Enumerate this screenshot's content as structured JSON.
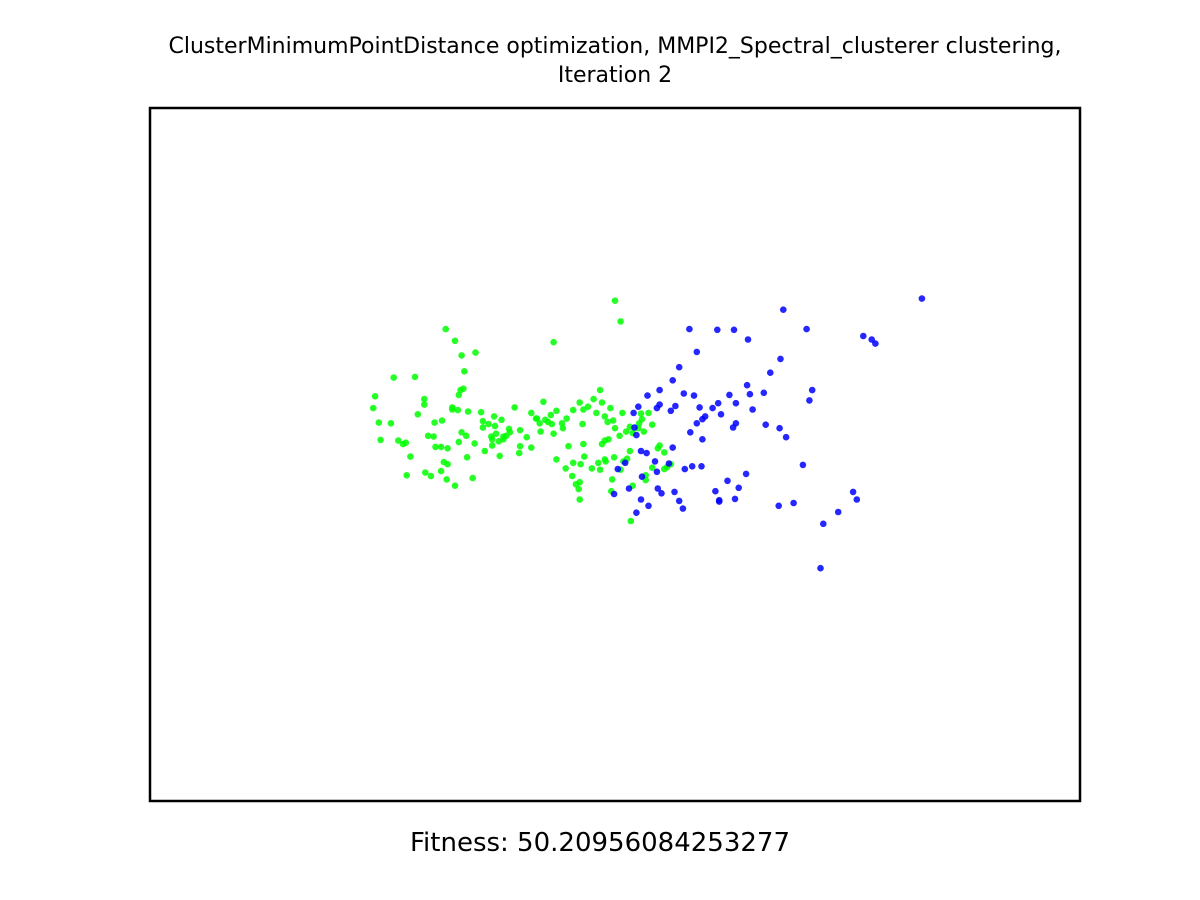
{
  "chart_data": {
    "type": "scatter",
    "title_lines": [
      "ClusterMinimumPointDistance optimization, MMPI2_Spectral_clusterer clustering,",
      "Iteration 2"
    ],
    "xlabel": "Fitness: 50.20956084253277",
    "ylabel": "",
    "xlim": [
      0,
      1000
    ],
    "ylim": [
      0,
      1000
    ],
    "axis_ticks_visible": false,
    "grid": false,
    "legend": "none",
    "series": [
      {
        "color": "#00ff00",
        "points": [
          [
            500,
            722
          ],
          [
            506,
            692
          ],
          [
            434,
            662
          ],
          [
            376,
            498
          ],
          [
            342,
            562
          ],
          [
            349,
            516
          ],
          [
            358,
            548
          ],
          [
            364,
            544
          ],
          [
            371,
            541
          ],
          [
            375,
            519
          ],
          [
            378,
            550
          ],
          [
            380,
            522
          ],
          [
            392,
            568
          ],
          [
            398,
            535
          ],
          [
            397,
            502
          ],
          [
            405,
            525
          ],
          [
            410,
            560
          ],
          [
            416,
            552
          ],
          [
            420,
            533
          ],
          [
            425,
            550
          ],
          [
            431,
            557
          ],
          [
            432,
            544
          ],
          [
            434,
            530
          ],
          [
            437,
            563
          ],
          [
            443,
            545
          ],
          [
            448,
            552
          ],
          [
            455,
            564
          ],
          [
            462,
            575
          ],
          [
            466,
            565
          ],
          [
            471,
            569
          ],
          [
            477,
            580
          ],
          [
            480,
            560
          ],
          [
            484,
            593
          ],
          [
            486,
            575
          ],
          [
            489,
            555
          ],
          [
            492,
            547
          ],
          [
            495,
            567
          ],
          [
            489,
            520
          ],
          [
            498,
            549
          ],
          [
            500,
            538
          ],
          [
            505,
            527
          ],
          [
            508,
            560
          ],
          [
            512,
            533
          ],
          [
            516,
            540
          ],
          [
            519,
            531
          ],
          [
            526,
            545
          ],
          [
            529,
            551
          ],
          [
            531,
            533
          ],
          [
            536,
            560
          ],
          [
            540,
            543
          ],
          [
            548,
            513
          ],
          [
            553,
            503
          ],
          [
            461,
            450
          ],
          [
            462,
            460
          ],
          [
            463,
            486
          ],
          [
            465,
            544
          ],
          [
            467,
            497
          ],
          [
            475,
            480
          ],
          [
            482,
            488
          ],
          [
            484,
            478
          ],
          [
            486,
            515
          ],
          [
            490,
            490
          ],
          [
            493,
            522
          ],
          [
            496,
            447
          ],
          [
            497,
            464
          ],
          [
            499,
            496
          ],
          [
            506,
            478
          ],
          [
            509,
            490
          ],
          [
            513,
            494
          ],
          [
            516,
            505
          ],
          [
            525,
            538
          ],
          [
            528,
            559
          ],
          [
            533,
            470
          ],
          [
            540,
            481
          ],
          [
            546,
            509
          ],
          [
            553,
            479
          ],
          [
            556,
            482
          ],
          [
            560,
            486
          ],
          [
            533,
            463
          ],
          [
            519,
            455
          ],
          [
            517,
            404
          ],
          [
            489,
            493
          ],
          [
            462,
            435
          ],
          [
            458,
            457
          ],
          [
            454,
            469
          ],
          [
            447,
            480
          ],
          [
            437,
            493
          ],
          [
            466,
            515
          ],
          [
            455,
            488
          ],
          [
            450,
            512
          ],
          [
            444,
            538
          ],
          [
            428,
            547
          ],
          [
            423,
            576
          ],
          [
            419,
            545
          ],
          [
            415,
            552
          ],
          [
            410,
            510
          ],
          [
            398,
            512
          ],
          [
            387,
            532
          ],
          [
            386,
            537
          ],
          [
            383,
            527
          ],
          [
            380,
            526
          ],
          [
            372,
            530
          ],
          [
            370,
            555
          ],
          [
            368,
            513
          ],
          [
            368,
            522
          ],
          [
            367,
            526
          ],
          [
            360,
            505
          ],
          [
            358,
            539
          ],
          [
            356,
            561
          ],
          [
            347,
            466
          ],
          [
            341,
            496
          ],
          [
            340,
            527
          ],
          [
            335,
            532
          ],
          [
            332,
            518
          ],
          [
            328,
            455
          ],
          [
            320,
            486
          ],
          [
            319,
            464
          ],
          [
            313,
            476
          ],
          [
            313,
            511
          ],
          [
            320,
            509
          ],
          [
            316,
            489
          ],
          [
            314,
            549
          ],
          [
            307,
            511
          ],
          [
            305,
            526
          ],
          [
            302,
            469
          ],
          [
            296,
            474
          ],
          [
            272,
            515
          ],
          [
            267,
            520
          ],
          [
            259,
            545
          ],
          [
            246,
            546
          ],
          [
            275,
            517
          ],
          [
            325,
            565
          ],
          [
            331,
            564
          ],
          [
            334,
            593
          ],
          [
            338,
            620
          ],
          [
            350,
            647
          ],
          [
            335,
            643
          ],
          [
            337,
            595
          ],
          [
            332,
            586
          ],
          [
            325,
            568
          ],
          [
            295,
            572
          ],
          [
            288,
            558
          ],
          [
            280,
            497
          ],
          [
            276,
            470
          ],
          [
            299,
            527
          ],
          [
            306,
            546
          ],
          [
            295,
            580
          ],
          [
            285,
            612
          ],
          [
            262,
            611
          ],
          [
            242,
            584
          ],
          [
            240,
            567
          ],
          [
            248,
            521
          ],
          [
            318,
            681
          ],
          [
            328,
            664
          ]
        ]
      },
      {
        "color": "#0000ff",
        "points": [
          [
            830,
            725
          ],
          [
            681,
            709
          ],
          [
            706,
            681
          ],
          [
            767,
            671
          ],
          [
            580,
            681
          ],
          [
            628,
            680
          ],
          [
            610,
            680
          ],
          [
            643,
            666
          ],
          [
            780,
            660
          ],
          [
            776,
            666
          ],
          [
            588,
            648
          ],
          [
            660,
            589
          ],
          [
            667,
            618
          ],
          [
            678,
            638
          ],
          [
            645,
            587
          ],
          [
            642,
            600
          ],
          [
            611,
            574
          ],
          [
            614,
            558
          ],
          [
            605,
            567
          ],
          [
            623,
            586
          ],
          [
            648,
            565
          ],
          [
            712,
            593
          ],
          [
            709,
            578
          ],
          [
            630,
            574
          ],
          [
            585,
            585
          ],
          [
            569,
            626
          ],
          [
            560,
            563
          ],
          [
            562,
            607
          ],
          [
            548,
            593
          ],
          [
            535,
            585
          ],
          [
            525,
            569
          ],
          [
            520,
            560
          ],
          [
            545,
            567
          ],
          [
            548,
            572
          ],
          [
            574,
            588
          ],
          [
            591,
            568
          ],
          [
            565,
            570
          ],
          [
            597,
            555
          ],
          [
            588,
            545
          ],
          [
            630,
            545
          ],
          [
            662,
            543
          ],
          [
            677,
            538
          ],
          [
            684,
            525
          ],
          [
            594,
            522
          ],
          [
            621,
            462
          ],
          [
            633,
            452
          ],
          [
            612,
            432
          ],
          [
            629,
            436
          ],
          [
            692,
            430
          ],
          [
            721,
            336
          ],
          [
            724,
            400
          ],
          [
            740,
            417
          ],
          [
            756,
            446
          ],
          [
            760,
            435
          ],
          [
            702,
            485
          ],
          [
            676,
            426
          ],
          [
            564,
            446
          ],
          [
            550,
            444
          ],
          [
            523,
            416
          ],
          [
            536,
            426
          ],
          [
            546,
            451
          ],
          [
            528,
            435
          ],
          [
            499,
            443
          ],
          [
            503,
            479
          ],
          [
            511,
            488
          ],
          [
            515,
            451
          ],
          [
            521,
            539
          ],
          [
            523,
            528
          ],
          [
            528,
            505
          ],
          [
            534,
            502
          ],
          [
            543,
            490
          ],
          [
            545,
            475
          ],
          [
            558,
            487
          ],
          [
            569,
            433
          ],
          [
            573,
            422
          ],
          [
            575,
            479
          ],
          [
            581,
            532
          ],
          [
            583,
            483
          ],
          [
            562,
            510
          ],
          [
            593,
            483
          ],
          [
            608,
            447
          ],
          [
            641,
            472
          ],
          [
            594,
            551
          ],
          [
            612,
            434
          ],
          [
            529,
            468
          ],
          [
            627,
            539
          ]
        ]
      }
    ]
  },
  "fitness_label": "Fitness: 50.20956084253277"
}
